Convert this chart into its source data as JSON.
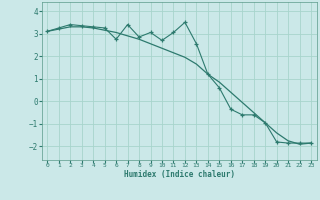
{
  "xlabel": "Humidex (Indice chaleur)",
  "background_color": "#cbe8e8",
  "grid_color": "#a8d4cc",
  "line_color": "#2d7a6e",
  "spine_color": "#5a9a8a",
  "xlim": [
    -0.5,
    23.5
  ],
  "ylim": [
    -2.6,
    4.4
  ],
  "xticks": [
    0,
    1,
    2,
    3,
    4,
    5,
    6,
    7,
    8,
    9,
    10,
    11,
    12,
    13,
    14,
    15,
    16,
    17,
    18,
    19,
    20,
    21,
    22,
    23
  ],
  "yticks": [
    -2,
    -1,
    0,
    1,
    2,
    3,
    4
  ],
  "series1_x": [
    0,
    1,
    2,
    3,
    4,
    5,
    6,
    7,
    8,
    9,
    10,
    11,
    12,
    13,
    14,
    15,
    16,
    17,
    18,
    19,
    20,
    21,
    22,
    23
  ],
  "series1_y": [
    3.1,
    3.25,
    3.4,
    3.35,
    3.3,
    3.25,
    2.75,
    3.4,
    2.85,
    3.05,
    2.7,
    3.05,
    3.5,
    2.55,
    1.2,
    0.6,
    -0.35,
    -0.6,
    -0.6,
    -0.95,
    -1.8,
    -1.85,
    -1.85,
    -1.85
  ],
  "series2_x": [
    0,
    1,
    2,
    3,
    4,
    5,
    6,
    7,
    8,
    9,
    10,
    11,
    12,
    13,
    14,
    15,
    16,
    17,
    18,
    19,
    20,
    21,
    22,
    23
  ],
  "series2_y": [
    3.1,
    3.2,
    3.3,
    3.3,
    3.25,
    3.15,
    3.05,
    2.9,
    2.75,
    2.55,
    2.35,
    2.15,
    1.95,
    1.65,
    1.2,
    0.85,
    0.4,
    -0.05,
    -0.5,
    -0.95,
    -1.4,
    -1.75,
    -1.9,
    -1.85
  ]
}
